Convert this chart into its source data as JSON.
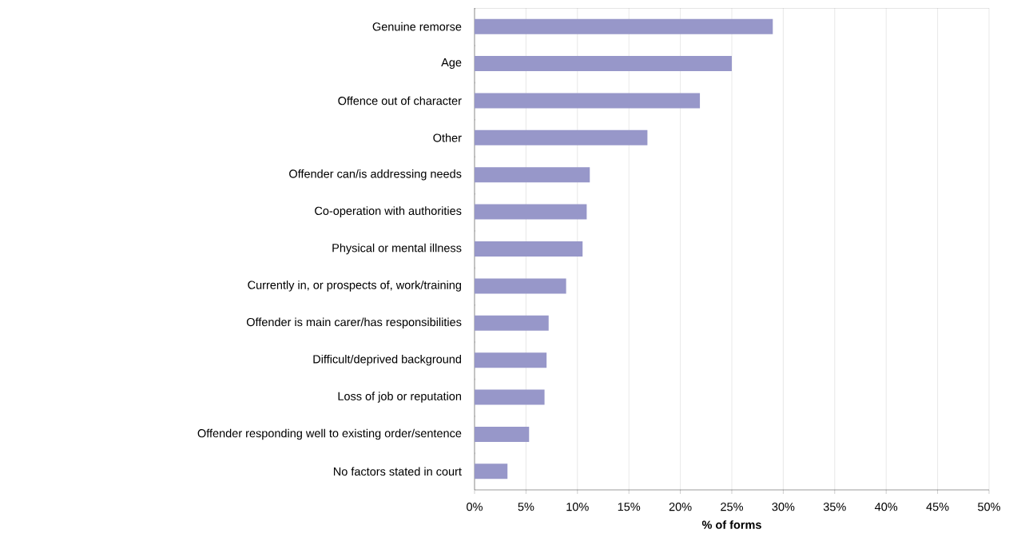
{
  "chart_data": {
    "type": "bar",
    "orientation": "horizontal",
    "xlabel": "% of forms",
    "categories": [
      "Genuine remorse",
      "Age",
      "Offence out of character",
      "Other",
      "Offender can/is addressing needs",
      "Co-operation with authorities",
      "Physical or mental illness",
      "Currently in, or prospects of, work/training",
      "Offender is main carer/has responsibilities",
      "Difficult/deprived background",
      "Loss of job or reputation",
      "Offender responding well to existing order/sentence",
      "No factors stated in court"
    ],
    "values": [
      29.0,
      25.0,
      21.9,
      16.8,
      11.2,
      10.9,
      10.5,
      8.9,
      7.2,
      7.0,
      6.8,
      5.3,
      3.2
    ],
    "color": "#9797c9",
    "xlim": [
      0,
      50
    ],
    "xticks": [
      {
        "value": 0,
        "label": "0%"
      },
      {
        "value": 5,
        "label": "5%"
      },
      {
        "value": 10,
        "label": "10%"
      },
      {
        "value": 15,
        "label": "15%"
      },
      {
        "value": 20,
        "label": "20%"
      },
      {
        "value": 25,
        "label": "25%"
      },
      {
        "value": 30,
        "label": "30%"
      },
      {
        "value": 35,
        "label": "35%"
      },
      {
        "value": 40,
        "label": "40%"
      },
      {
        "value": 45,
        "label": "45%"
      },
      {
        "value": 50,
        "label": "50%"
      }
    ],
    "grid": "x"
  }
}
